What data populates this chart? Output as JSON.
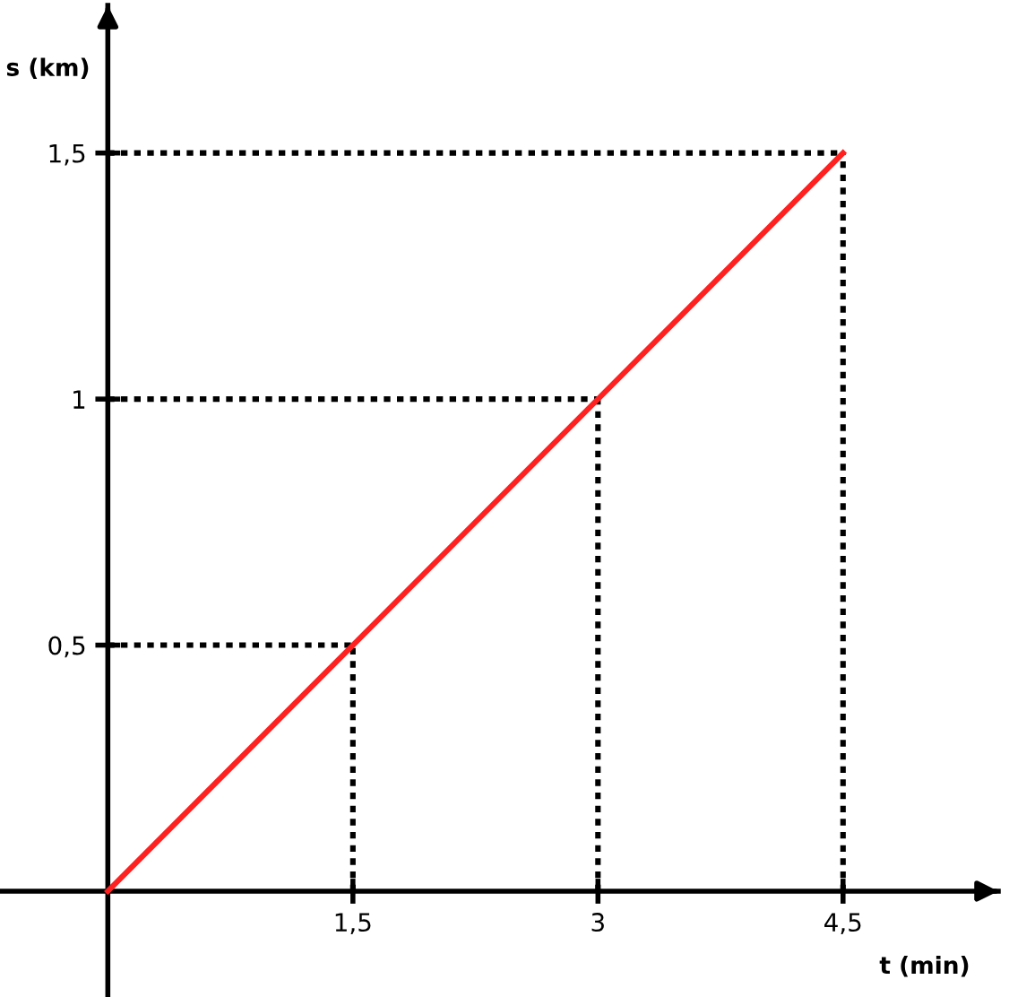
{
  "chart_data": {
    "type": "line",
    "xlabel": "t (min)",
    "ylabel": "s (km)",
    "x": [
      0,
      1.5,
      3,
      4.5
    ],
    "series": [
      {
        "color": "#ff2020",
        "values": [
          0,
          0.5,
          1,
          1.5
        ]
      }
    ],
    "xlim": [
      -0.66,
      5.45
    ],
    "ylim": [
      -0.215,
      1.8
    ],
    "xticks": [
      {
        "value": 1.5,
        "label": "1,5"
      },
      3,
      {
        "value": 4.5,
        "label": "4,5"
      }
    ],
    "yticks": [
      {
        "value": 0.5,
        "label": "0,5"
      },
      1,
      {
        "value": 1.5,
        "label": "1,5"
      }
    ],
    "grid": false,
    "marker": "none",
    "line_style": "solid",
    "ref_lines": [
      {
        "axis": "x",
        "value": 1.5,
        "line_style": "dotted",
        "color": "#000000"
      },
      {
        "axis": "x",
        "value": 3,
        "line_style": "dotted",
        "color": "#000000"
      },
      {
        "axis": "x",
        "value": 4.5,
        "line_style": "dotted",
        "color": "#000000"
      },
      {
        "axis": "y",
        "value": 0.5,
        "line_style": "dotted",
        "color": "#000000"
      },
      {
        "axis": "y",
        "value": 1,
        "line_style": "dotted",
        "color": "#000000"
      },
      {
        "axis": "y",
        "value": 1.5,
        "line_style": "dotted",
        "color": "#000000"
      }
    ]
  }
}
